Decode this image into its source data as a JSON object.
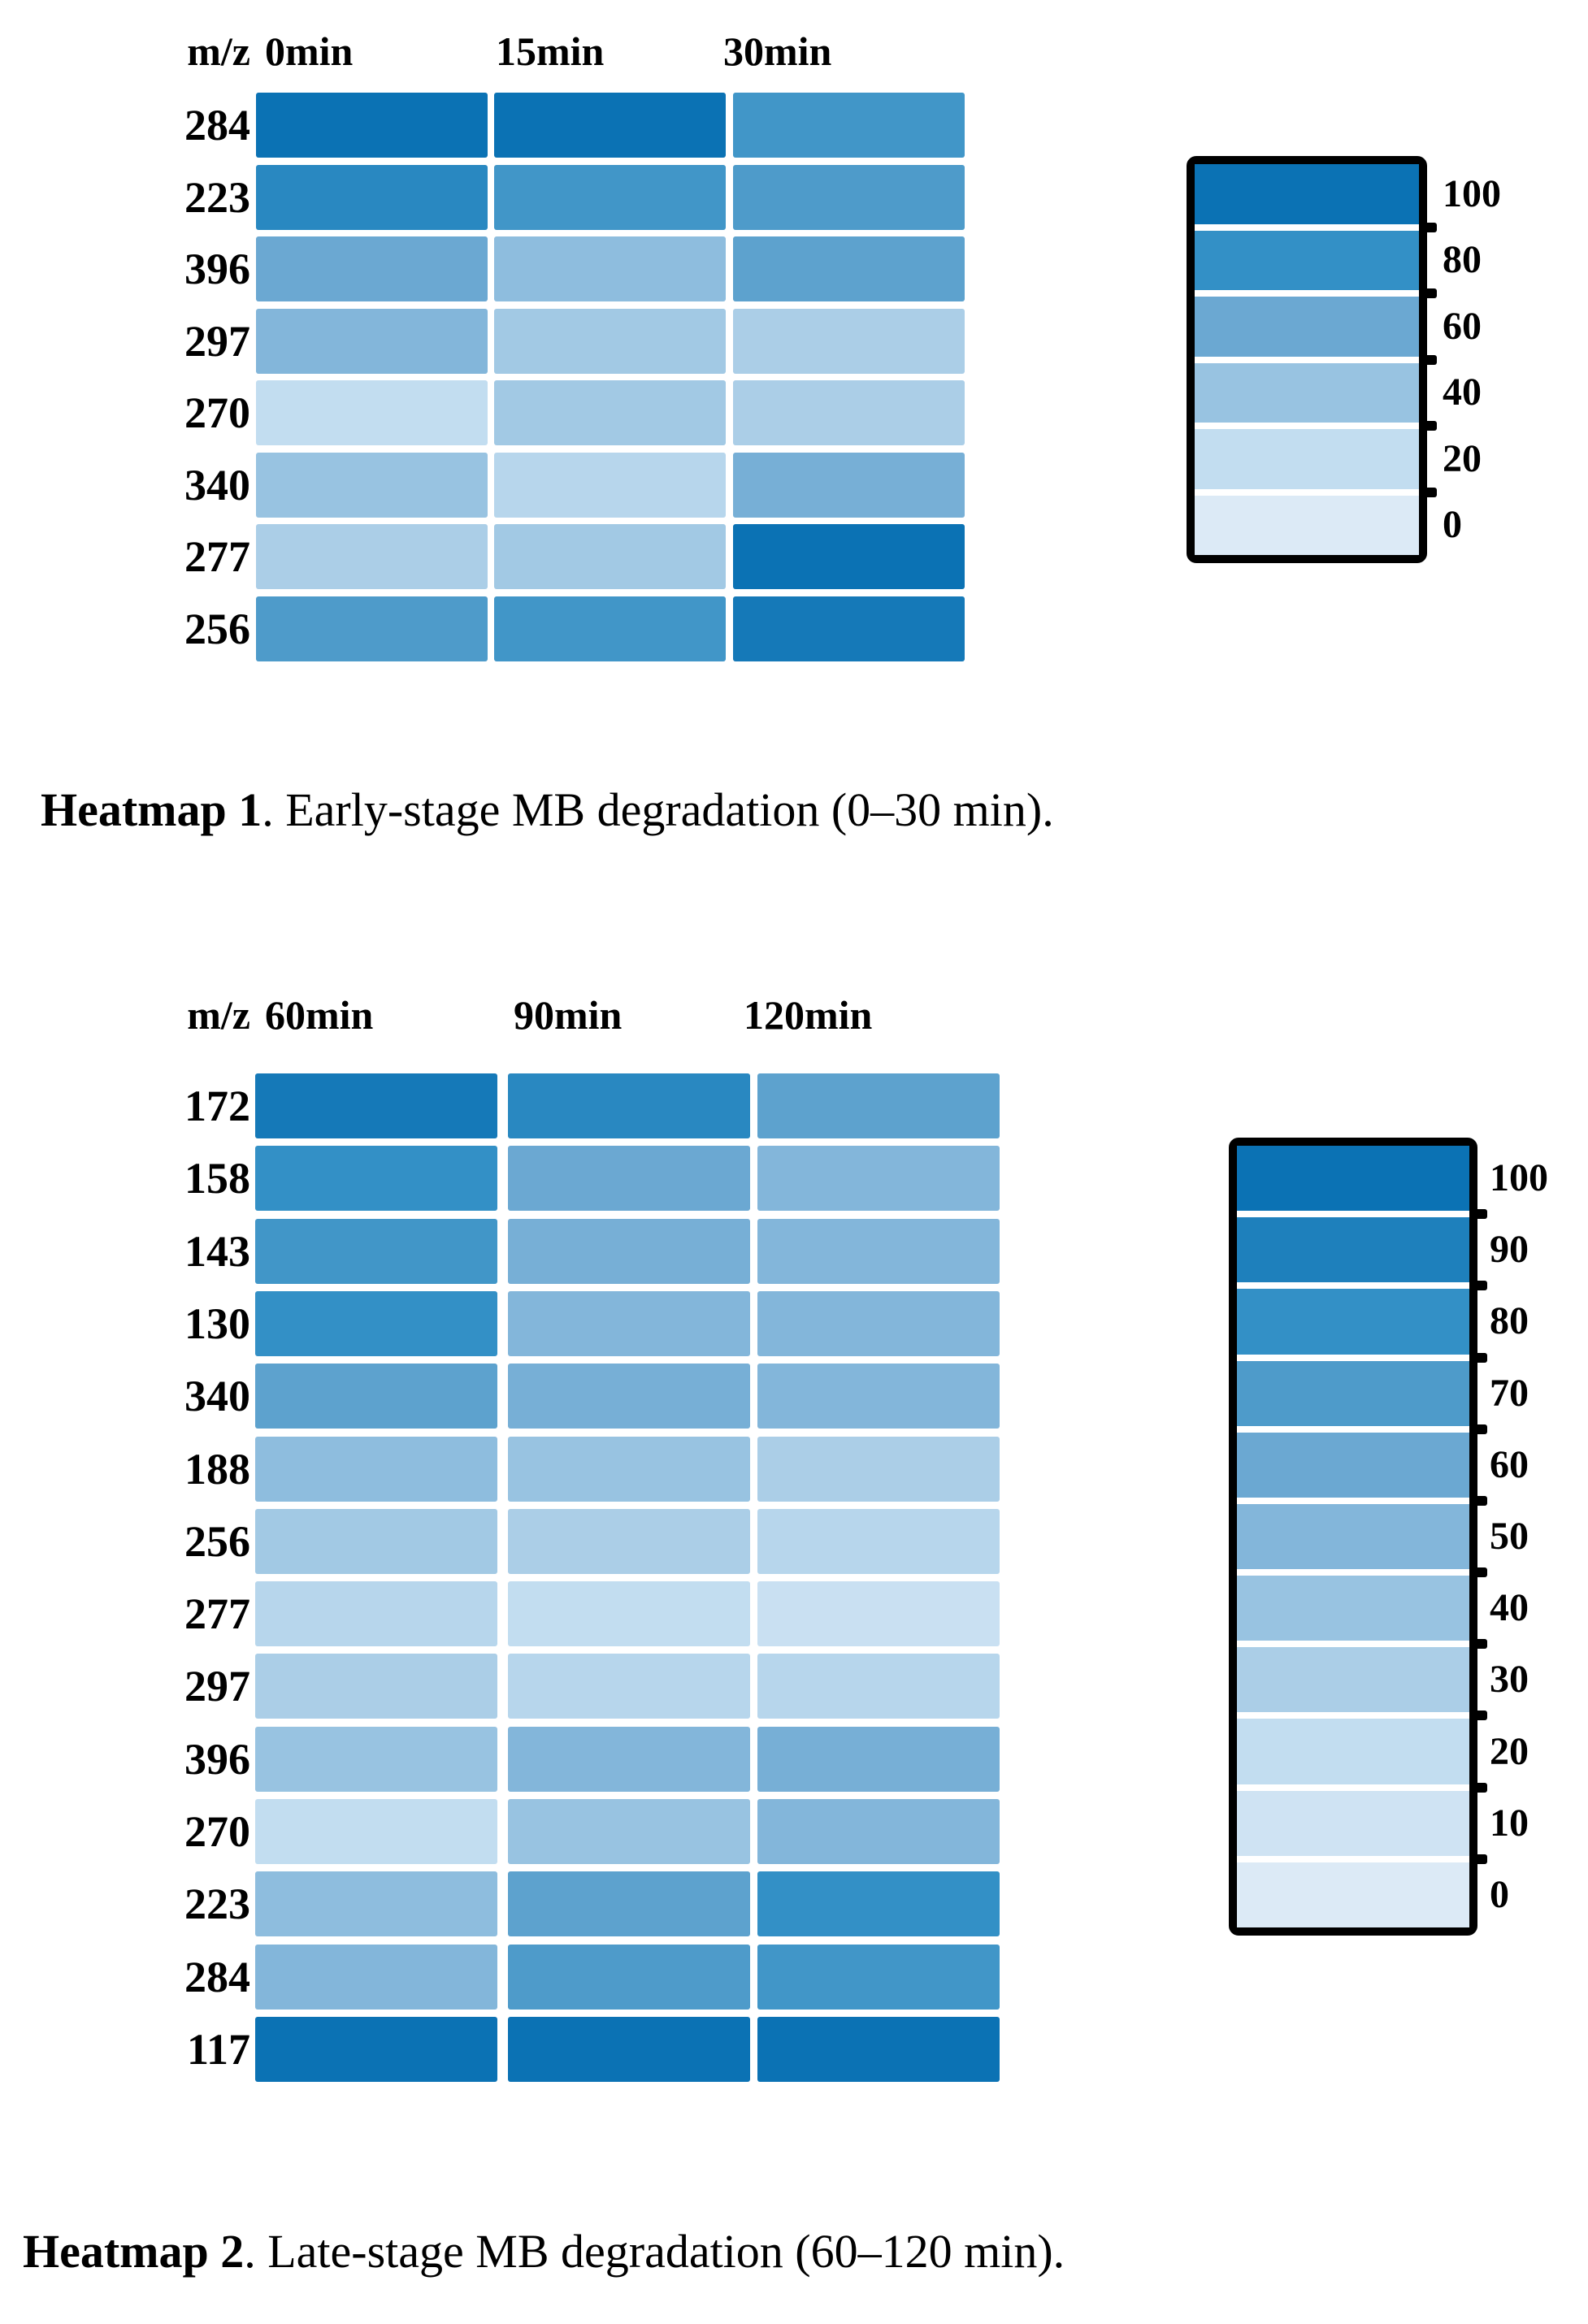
{
  "page": {
    "background": "#ffffff"
  },
  "palette": {
    "border_color": "#000000",
    "text_color": "#000000",
    "stops": [
      {
        "value": 0,
        "color": "#dceaf6"
      },
      {
        "value": 10,
        "color": "#cfe3f3"
      },
      {
        "value": 20,
        "color": "#c2ddf0"
      },
      {
        "value": 30,
        "color": "#abcee7"
      },
      {
        "value": 40,
        "color": "#98c3e1"
      },
      {
        "value": 50,
        "color": "#83b6da"
      },
      {
        "value": 60,
        "color": "#6ba8d2"
      },
      {
        "value": 70,
        "color": "#4e9bca"
      },
      {
        "value": 80,
        "color": "#3390c6"
      },
      {
        "value": 90,
        "color": "#1e80bc"
      },
      {
        "value": 100,
        "color": "#0b72b4"
      }
    ]
  },
  "chart_data": [
    {
      "type": "heatmap",
      "title": "Heatmap 1. Early-stage MB degradation (0–30 min).",
      "corner_label": "m/z",
      "columns": [
        "0min",
        "15min",
        "30min"
      ],
      "rows": [
        "284",
        "223",
        "396",
        "297",
        "270",
        "340",
        "277",
        "256"
      ],
      "values": [
        [
          100,
          100,
          75
        ],
        [
          85,
          75,
          70
        ],
        [
          60,
          45,
          65
        ],
        [
          50,
          35,
          30
        ],
        [
          20,
          35,
          30
        ],
        [
          40,
          25,
          55
        ],
        [
          30,
          35,
          100
        ],
        [
          70,
          75,
          95
        ]
      ],
      "colorbar": {
        "min": 0,
        "max": 100,
        "ticks": [
          100,
          80,
          60,
          40,
          20,
          0
        ]
      },
      "caption": {
        "bold": "Heatmap 1",
        "rest": ". Early-stage MB degradation (0–30 min)."
      },
      "legend_position": "right",
      "grid": false
    },
    {
      "type": "heatmap",
      "title": "Heatmap 2. Late-stage MB degradation (60–120 min).",
      "corner_label": "m/z",
      "columns": [
        "60min",
        "90min",
        "120min"
      ],
      "rows": [
        "172",
        "158",
        "143",
        "130",
        "340",
        "188",
        "256",
        "277",
        "297",
        "396",
        "270",
        "223",
        "284",
        "117"
      ],
      "values": [
        [
          95,
          85,
          65
        ],
        [
          80,
          60,
          50
        ],
        [
          75,
          55,
          50
        ],
        [
          80,
          50,
          50
        ],
        [
          65,
          55,
          50
        ],
        [
          45,
          40,
          30
        ],
        [
          35,
          30,
          25
        ],
        [
          25,
          20,
          15
        ],
        [
          30,
          25,
          25
        ],
        [
          40,
          50,
          55
        ],
        [
          20,
          40,
          50
        ],
        [
          45,
          65,
          80
        ],
        [
          50,
          70,
          75
        ],
        [
          100,
          100,
          100
        ]
      ],
      "colorbar": {
        "min": 0,
        "max": 100,
        "ticks": [
          100,
          90,
          80,
          70,
          60,
          50,
          40,
          30,
          20,
          10,
          0
        ]
      },
      "caption": {
        "bold": "Heatmap 2",
        "rest": ". Late-stage MB degradation (60–120 min)."
      },
      "legend_position": "right",
      "grid": false
    }
  ]
}
